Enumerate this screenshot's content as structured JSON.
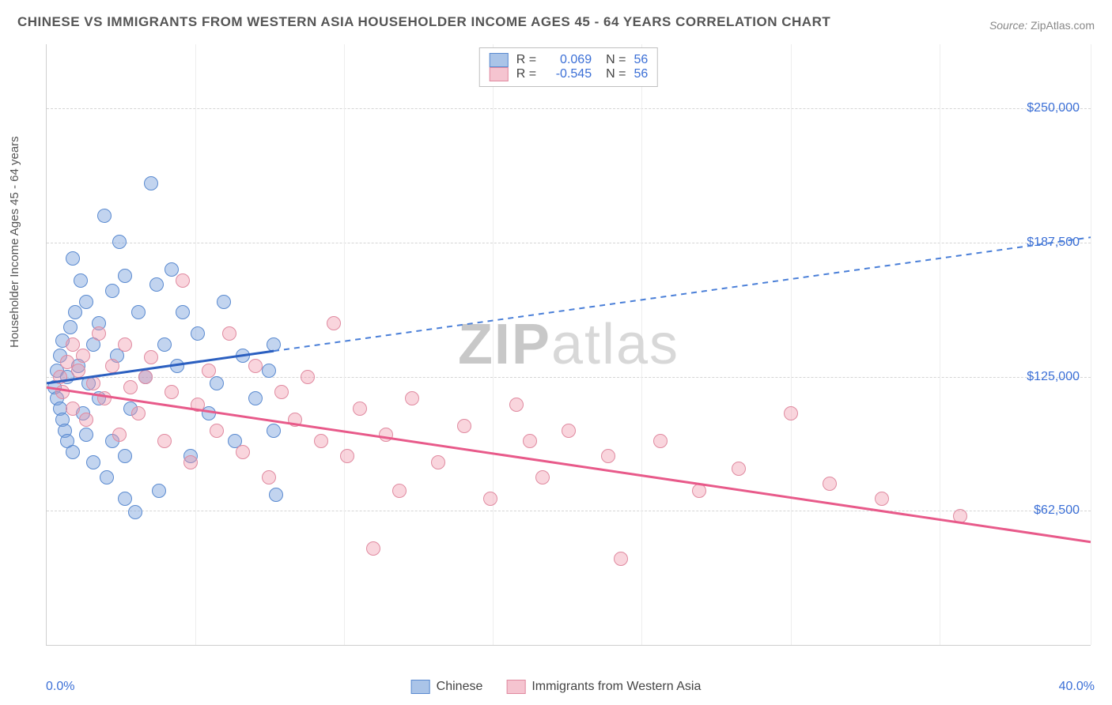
{
  "title": "CHINESE VS IMMIGRANTS FROM WESTERN ASIA HOUSEHOLDER INCOME AGES 45 - 64 YEARS CORRELATION CHART",
  "source_label": "Source:",
  "source_value": "ZipAtlas.com",
  "ylabel": "Householder Income Ages 45 - 64 years",
  "watermark": {
    "prefix": "ZIP",
    "suffix": "atlas"
  },
  "chart": {
    "type": "scatter",
    "background_color": "#ffffff",
    "grid_color": "#d5d5d5",
    "xlim": [
      0,
      40
    ],
    "ylim": [
      0,
      280000
    ],
    "x_tick_positions": [
      0,
      5.7,
      11.4,
      17.1,
      22.8,
      28.5,
      34.2,
      40
    ],
    "y_gridlines": [
      62500,
      125000,
      187500,
      250000
    ],
    "y_tick_labels": [
      "$62,500",
      "$125,000",
      "$187,500",
      "$250,000"
    ],
    "x_min_label": "0.0%",
    "x_max_label": "40.0%",
    "marker_radius": 9,
    "series": [
      {
        "name": "Chinese",
        "fill_color": "rgba(120,160,220,0.45)",
        "stroke_color": "#5a8ad0",
        "swatch_fill": "#aac4e8",
        "swatch_border": "#5a8ad0",
        "R": "0.069",
        "N": "56",
        "trend": {
          "solid_color": "#2b5fc0",
          "solid_width": 3,
          "dash_color": "#4a7fd8",
          "dash_width": 2,
          "x1": 0,
          "y1": 122000,
          "x_solid_end": 8.7,
          "y_solid_end": 137000,
          "x2": 40,
          "y2": 190000
        },
        "points": [
          [
            0.3,
            120000
          ],
          [
            0.4,
            115000
          ],
          [
            0.4,
            128000
          ],
          [
            0.5,
            110000
          ],
          [
            0.5,
            135000
          ],
          [
            0.6,
            105000
          ],
          [
            0.6,
            142000
          ],
          [
            0.7,
            100000
          ],
          [
            0.8,
            125000
          ],
          [
            0.8,
            95000
          ],
          [
            0.9,
            148000
          ],
          [
            1.0,
            180000
          ],
          [
            1.0,
            90000
          ],
          [
            1.1,
            155000
          ],
          [
            1.2,
            130000
          ],
          [
            1.3,
            170000
          ],
          [
            1.4,
            108000
          ],
          [
            1.5,
            98000
          ],
          [
            1.5,
            160000
          ],
          [
            1.6,
            122000
          ],
          [
            1.8,
            140000
          ],
          [
            1.8,
            85000
          ],
          [
            2.0,
            150000
          ],
          [
            2.0,
            115000
          ],
          [
            2.2,
            200000
          ],
          [
            2.3,
            78000
          ],
          [
            2.5,
            165000
          ],
          [
            2.5,
            95000
          ],
          [
            2.7,
            135000
          ],
          [
            2.8,
            188000
          ],
          [
            3.0,
            172000
          ],
          [
            3.0,
            68000
          ],
          [
            3.2,
            110000
          ],
          [
            3.4,
            62000
          ],
          [
            3.5,
            155000
          ],
          [
            3.8,
            125000
          ],
          [
            4.0,
            215000
          ],
          [
            4.2,
            168000
          ],
          [
            4.3,
            72000
          ],
          [
            4.5,
            140000
          ],
          [
            4.8,
            175000
          ],
          [
            5.0,
            130000
          ],
          [
            5.2,
            155000
          ],
          [
            5.5,
            88000
          ],
          [
            5.8,
            145000
          ],
          [
            6.2,
            108000
          ],
          [
            6.5,
            122000
          ],
          [
            6.8,
            160000
          ],
          [
            7.2,
            95000
          ],
          [
            7.5,
            135000
          ],
          [
            8.0,
            115000
          ],
          [
            8.5,
            128000
          ],
          [
            8.7,
            100000
          ],
          [
            8.8,
            70000
          ],
          [
            8.7,
            140000
          ],
          [
            3.0,
            88000
          ]
        ]
      },
      {
        "name": "Immigrants from Western Asia",
        "fill_color": "rgba(240,150,170,0.40)",
        "stroke_color": "#e08aa0",
        "swatch_fill": "#f5c4d0",
        "swatch_border": "#e08aa0",
        "R": "-0.545",
        "N": "56",
        "trend": {
          "solid_color": "#e85a8a",
          "solid_width": 3,
          "x1": 0,
          "y1": 120000,
          "x2": 40,
          "y2": 48000
        },
        "points": [
          [
            0.5,
            125000
          ],
          [
            0.6,
            118000
          ],
          [
            0.8,
            132000
          ],
          [
            1.0,
            140000
          ],
          [
            1.0,
            110000
          ],
          [
            1.2,
            128000
          ],
          [
            1.4,
            135000
          ],
          [
            1.5,
            105000
          ],
          [
            1.8,
            122000
          ],
          [
            2.0,
            145000
          ],
          [
            2.2,
            115000
          ],
          [
            2.5,
            130000
          ],
          [
            2.8,
            98000
          ],
          [
            3.0,
            140000
          ],
          [
            3.2,
            120000
          ],
          [
            3.5,
            108000
          ],
          [
            3.8,
            125000
          ],
          [
            4.0,
            134000
          ],
          [
            4.5,
            95000
          ],
          [
            4.8,
            118000
          ],
          [
            5.2,
            170000
          ],
          [
            5.5,
            85000
          ],
          [
            5.8,
            112000
          ],
          [
            6.2,
            128000
          ],
          [
            6.5,
            100000
          ],
          [
            7.0,
            145000
          ],
          [
            7.5,
            90000
          ],
          [
            8.0,
            130000
          ],
          [
            8.5,
            78000
          ],
          [
            9.0,
            118000
          ],
          [
            9.5,
            105000
          ],
          [
            10.0,
            125000
          ],
          [
            10.5,
            95000
          ],
          [
            11.0,
            150000
          ],
          [
            11.5,
            88000
          ],
          [
            12.0,
            110000
          ],
          [
            12.5,
            45000
          ],
          [
            13.0,
            98000
          ],
          [
            13.5,
            72000
          ],
          [
            14.0,
            115000
          ],
          [
            15.0,
            85000
          ],
          [
            16.0,
            102000
          ],
          [
            17.0,
            68000
          ],
          [
            18.0,
            112000
          ],
          [
            19.0,
            78000
          ],
          [
            20.0,
            100000
          ],
          [
            21.5,
            88000
          ],
          [
            22.0,
            40000
          ],
          [
            23.5,
            95000
          ],
          [
            25.0,
            72000
          ],
          [
            26.5,
            82000
          ],
          [
            28.5,
            108000
          ],
          [
            30.0,
            75000
          ],
          [
            32.0,
            68000
          ],
          [
            35.0,
            60000
          ],
          [
            18.5,
            95000
          ]
        ]
      }
    ]
  },
  "colors": {
    "title_text": "#555555",
    "source_text": "#888888",
    "tick_text": "#3b6fd6",
    "axis_line": "#cfcfcf"
  },
  "typography": {
    "title_fontsize": 17,
    "tick_fontsize": 16,
    "ylabel_fontsize": 15,
    "legend_fontsize": 16,
    "watermark_fontsize": 72
  }
}
